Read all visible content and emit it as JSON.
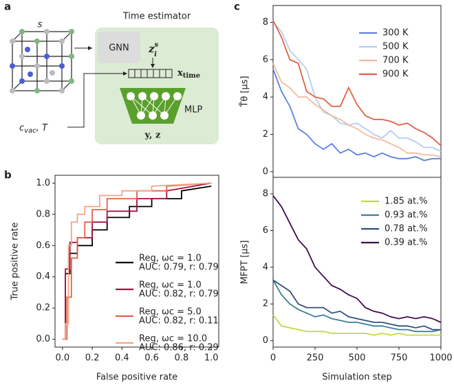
{
  "panel_labels": [
    "a",
    "b",
    "c"
  ],
  "diagram": {
    "lattice_label": "s",
    "title": "Time estimator",
    "gnn": "GNN",
    "embedding": {
      "base": "z",
      "sup": "s",
      "sub": "i"
    },
    "vector": {
      "base": "x",
      "sub": "time"
    },
    "mlp": "MLP",
    "output": "y, z",
    "input": {
      "base": "c",
      "sub": "vac",
      "tail": ", T"
    }
  },
  "chart_data": [
    {
      "type": "line",
      "xlabel": "False positive rate",
      "ylabel": "True positive rate",
      "xlim": [
        -0.05,
        1.05
      ],
      "ylim": [
        -0.05,
        1.05
      ],
      "xticks": [
        {
          "value": 0,
          "label": "0.0"
        },
        0.2,
        0.4,
        0.6,
        0.8,
        {
          "value": 1,
          "label": "1.0"
        }
      ],
      "yticks": [
        {
          "value": 0,
          "label": "0.0"
        },
        0.2,
        0.4,
        0.6,
        0.8,
        {
          "value": 1,
          "label": "1.0"
        }
      ],
      "series": [
        {
          "name": "Reg, ωᴄ = 1.0",
          "note": "AUC: 0.79, r: 0.79",
          "color": "#000000",
          "x": [
            0,
            0.02,
            0.02,
            0.05,
            0.05,
            0.1,
            0.1,
            0.2,
            0.2,
            0.3,
            0.3,
            0.45,
            0.45,
            0.6,
            0.6,
            0.8,
            0.8,
            1.0
          ],
          "values": [
            0,
            0,
            0.42,
            0.42,
            0.55,
            0.55,
            0.6,
            0.6,
            0.7,
            0.7,
            0.78,
            0.78,
            0.85,
            0.85,
            0.9,
            0.9,
            0.95,
            0.98
          ]
        },
        {
          "name": "Reg, ωᴄ = 1.0",
          "note": "AUC: 0.82, r: 0.79",
          "color": "#a3123a",
          "x": [
            0,
            0.02,
            0.02,
            0.05,
            0.05,
            0.1,
            0.1,
            0.2,
            0.2,
            0.3,
            0.3,
            0.5,
            0.5,
            0.7,
            0.7,
            1.0
          ],
          "values": [
            0,
            0,
            0.45,
            0.45,
            0.62,
            0.62,
            0.65,
            0.65,
            0.75,
            0.75,
            0.82,
            0.82,
            0.9,
            0.9,
            0.95,
            1.0
          ]
        },
        {
          "name": "Reg, ωᴄ = 5.0",
          "note": "AUC: 0.82, r: 0.11",
          "color": "#e0604a",
          "x": [
            0,
            0.03,
            0.03,
            0.06,
            0.06,
            0.1,
            0.1,
            0.15,
            0.15,
            0.2,
            0.2,
            0.3,
            0.3,
            0.5,
            0.5,
            0.7,
            0.7,
            1.0
          ],
          "values": [
            0,
            0,
            0.27,
            0.27,
            0.52,
            0.52,
            0.65,
            0.65,
            0.75,
            0.75,
            0.83,
            0.83,
            0.9,
            0.9,
            0.95,
            0.95,
            0.98,
            1.0
          ]
        },
        {
          "name": "Reg, ωᴄ = 10.0",
          "note": "AUC: 0.86, r: 0.29",
          "color": "#f4a582",
          "x": [
            0,
            0.02,
            0.02,
            0.04,
            0.04,
            0.06,
            0.06,
            0.1,
            0.1,
            0.15,
            0.15,
            0.25,
            0.25,
            0.4,
            0.4,
            0.6,
            0.6,
            1.0
          ],
          "values": [
            0,
            0,
            0.1,
            0.1,
            0.6,
            0.6,
            0.75,
            0.75,
            0.8,
            0.8,
            0.85,
            0.85,
            0.92,
            0.92,
            0.95,
            0.95,
            0.98,
            1.0
          ]
        }
      ]
    },
    {
      "type": "line",
      "ylabel": "T̃θ [μs]",
      "xlim": [
        0,
        1000
      ],
      "ylim": [
        -0.3,
        8.9
      ],
      "yticks": [
        0,
        2,
        4,
        6,
        8
      ],
      "x": [
        0,
        50,
        100,
        150,
        200,
        250,
        300,
        350,
        400,
        450,
        500,
        550,
        600,
        650,
        700,
        750,
        800,
        850,
        900,
        950,
        1000
      ],
      "series": [
        {
          "name": "300 K",
          "color": "#5b7fe0",
          "values": [
            5.5,
            4.3,
            3.5,
            2.3,
            2.0,
            1.5,
            1.2,
            1.5,
            1.0,
            1.2,
            0.9,
            1.0,
            0.8,
            1.0,
            0.8,
            0.7,
            0.7,
            0.8,
            0.6,
            0.7,
            0.7
          ]
        },
        {
          "name": "500 K",
          "color": "#b3cbf2",
          "values": [
            8.0,
            7.5,
            6.5,
            6.0,
            5.5,
            4.0,
            3.2,
            3.0,
            2.6,
            2.5,
            2.6,
            2.3,
            2.0,
            1.8,
            2.2,
            1.8,
            1.8,
            1.6,
            1.3,
            1.3,
            1.1
          ]
        },
        {
          "name": "700 K",
          "color": "#f4b99a",
          "values": [
            5.8,
            4.8,
            4.5,
            4.0,
            4.0,
            3.6,
            3.3,
            3.0,
            2.8,
            2.5,
            2.3,
            2.0,
            1.8,
            1.7,
            1.5,
            1.3,
            1.0,
            1.0,
            0.9,
            0.9,
            0.8
          ]
        },
        {
          "name": "900 K",
          "color": "#e06046",
          "values": [
            8.1,
            7.2,
            6.0,
            5.8,
            4.3,
            4.0,
            3.9,
            3.5,
            3.5,
            4.5,
            3.6,
            3.0,
            2.8,
            2.8,
            2.7,
            2.5,
            2.6,
            2.3,
            2.1,
            1.8,
            1.4
          ]
        }
      ]
    },
    {
      "type": "line",
      "xlabel": "Simulation step",
      "ylabel": "MFPT [μs]",
      "xlim": [
        0,
        1000
      ],
      "ylim": [
        -0.35,
        8.9
      ],
      "xticks": [
        0,
        250,
        500,
        750,
        1000
      ],
      "yticks": [
        0,
        2,
        4,
        6,
        8
      ],
      "x": [
        0,
        50,
        100,
        150,
        200,
        250,
        300,
        350,
        400,
        450,
        500,
        550,
        600,
        650,
        700,
        750,
        800,
        850,
        900,
        950,
        1000
      ],
      "series": [
        {
          "name": "1.85 at.%",
          "color": "#c2d93a",
          "values": [
            1.4,
            0.8,
            0.7,
            0.6,
            0.5,
            0.5,
            0.5,
            0.4,
            0.4,
            0.4,
            0.4,
            0.4,
            0.3,
            0.4,
            0.3,
            0.4,
            0.3,
            0.3,
            0.3,
            0.3,
            0.3
          ]
        },
        {
          "name": "0.93 at.%",
          "color": "#3a7f96",
          "values": [
            3.3,
            2.5,
            2.0,
            1.7,
            1.5,
            1.3,
            1.4,
            1.2,
            1.1,
            1.0,
            1.0,
            0.9,
            0.8,
            0.8,
            0.7,
            0.6,
            0.6,
            0.5,
            0.5,
            0.5,
            0.6
          ]
        },
        {
          "name": "0.78 at.%",
          "color": "#2f4f7f",
          "values": [
            3.3,
            3.0,
            2.7,
            2.0,
            1.8,
            1.8,
            1.8,
            1.5,
            1.6,
            1.3,
            1.2,
            1.1,
            1.0,
            1.0,
            0.9,
            0.8,
            0.8,
            0.7,
            0.8,
            0.6,
            0.6
          ]
        },
        {
          "name": "0.39 at.%",
          "color": "#3d0b4e",
          "values": [
            7.9,
            7.3,
            6.4,
            5.5,
            5.0,
            4.0,
            3.5,
            3.0,
            2.8,
            2.5,
            2.3,
            1.8,
            1.6,
            1.5,
            1.3,
            1.2,
            1.3,
            1.2,
            1.3,
            1.2,
            1.0
          ]
        }
      ]
    }
  ]
}
